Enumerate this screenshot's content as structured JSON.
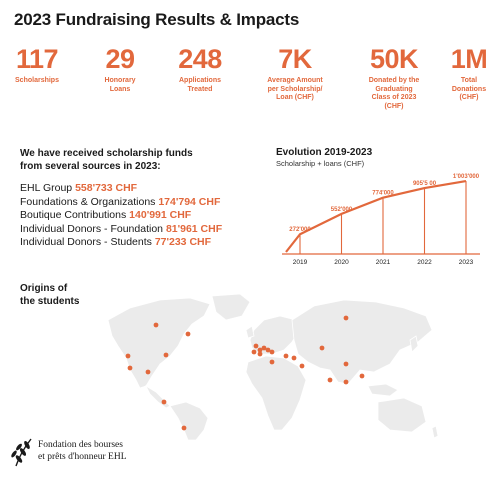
{
  "title": "2023 Fundraising Results & Impacts",
  "stats": [
    {
      "value": "117",
      "label": "Scholarships"
    },
    {
      "value": "29",
      "label": "Honorary\nLoans"
    },
    {
      "value": "248",
      "label": "Applications\nTreated"
    },
    {
      "value": "7K",
      "label": "Average Amount\nper Scholarship/\nLoan (CHF)"
    },
    {
      "value": "50K",
      "label": "Donated by the\nGraduating\nClass of 2023\n(CHF)"
    },
    {
      "value": "1M",
      "label": "Total\nDonations\n(CHF)"
    }
  ],
  "sources": {
    "heading": "We have received scholarship funds\nfrom several sources in 2023:",
    "items": [
      {
        "name": "EHL Group",
        "amount": "558'733 CHF"
      },
      {
        "name": "Foundations & Organizations",
        "amount": "174'794 CHF"
      },
      {
        "name": "Boutique Contributions",
        "amount": "140'991 CHF"
      },
      {
        "name": "Individual Donors - Foundation",
        "amount": "81'961 CHF"
      },
      {
        "name": "Individual Donors - Students",
        "amount": "77'233 CHF"
      }
    ]
  },
  "chart_data": {
    "type": "line",
    "title": "Evolution 2019-2023",
    "subtitle": "Scholarship + loans (CHF)",
    "x": [
      "2019",
      "2020",
      "2021",
      "2022",
      "2023"
    ],
    "series": [
      {
        "values": [
          272000,
          552000,
          774000,
          905500,
          1003000
        ]
      }
    ],
    "data_labels": [
      "272'000",
      "552'000",
      "774'000",
      "905'5 00",
      "1'003'000"
    ],
    "xlabel": "",
    "ylabel": "",
    "ylim": [
      0,
      1100000
    ],
    "grid": false,
    "color": "#e2683c"
  },
  "origins": {
    "heading": "Origins of\nthe students"
  },
  "map": {
    "land_color": "#ebebeb",
    "dot_color": "#e2683c"
  },
  "footer": {
    "foundation": "Fondation des bourses\net prêts d'honneur EHL",
    "logo_icon": "laurel-branch-icon"
  }
}
